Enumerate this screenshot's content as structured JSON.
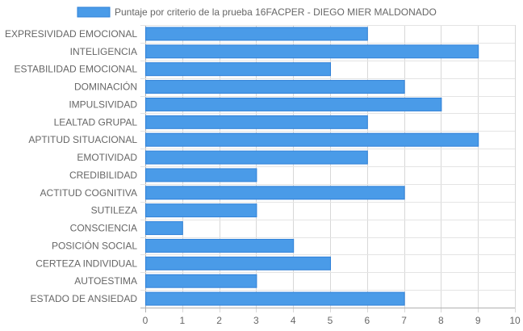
{
  "chart_data": {
    "type": "bar",
    "orientation": "horizontal",
    "title": "",
    "xlabel": "",
    "ylabel": "",
    "xlim": [
      0,
      10
    ],
    "x_ticks": [
      0,
      1,
      2,
      3,
      4,
      5,
      6,
      7,
      8,
      9,
      10
    ],
    "grid": true,
    "legend_position": "top",
    "categories": [
      "EXPRESIVIDAD EMOCIONAL",
      "INTELIGENCIA",
      "ESTABILIDAD EMOCIONAL",
      "DOMINACIÓN",
      "IMPULSIVIDAD",
      "LEALTAD GRUPAL",
      "APTITUD SITUACIONAL",
      "EMOTIVIDAD",
      "CREDIBILIDAD",
      "ACTITUD COGNITIVA",
      "SUTILEZA",
      "CONSCIENCIA",
      "POSICIÓN SOCIAL",
      "CERTEZA INDIVIDUAL",
      "AUTOESTIMA",
      "ESTADO DE ANSIEDAD"
    ],
    "series": [
      {
        "name": "Puntaje por criterio de la prueba 16FACPER - DIEGO MIER MALDONADO",
        "color": "#4a9be8",
        "border_color": "#2f80d8",
        "values": [
          6,
          9,
          5,
          7,
          8,
          6,
          9,
          6,
          3,
          7,
          3,
          1,
          4,
          5,
          3,
          7
        ]
      }
    ]
  }
}
